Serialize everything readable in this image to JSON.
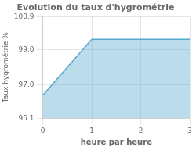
{
  "chart_data": {
    "type": "area",
    "title": "Evolution du taux d'hygrométrie",
    "xlabel": "heure par heure",
    "ylabel": "Taux hygrométrie %",
    "x": [
      0,
      1,
      3
    ],
    "values": [
      96.4,
      99.6,
      99.6
    ],
    "color": "#55aacc",
    "xlim": [
      0,
      3
    ],
    "ylim": [
      95.1,
      100.9
    ],
    "xticks": [
      0,
      1,
      2,
      3
    ],
    "yticks": [
      95.1,
      {
        "value": 97,
        "label": "97.0"
      },
      {
        "value": 99,
        "label": "99.0"
      },
      100.9
    ],
    "grid": true
  }
}
